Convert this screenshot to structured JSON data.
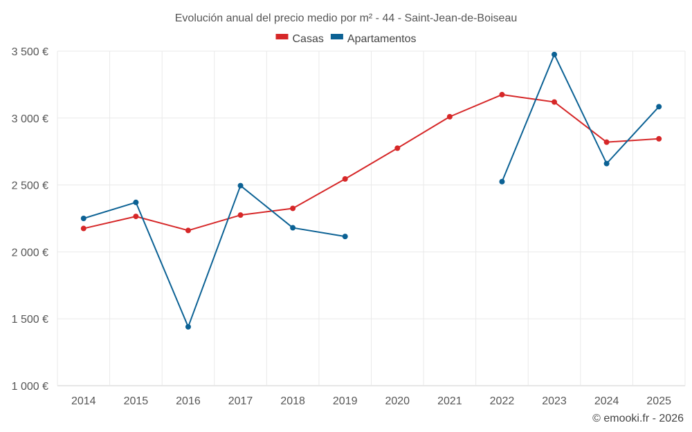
{
  "chart_data": {
    "type": "line",
    "title": "Evolución anual del precio medio por m² - 44 - Saint-Jean-de-Boiseau",
    "x": [
      "2014",
      "2015",
      "2016",
      "2017",
      "2018",
      "2019",
      "2020",
      "2021",
      "2022",
      "2023",
      "2024",
      "2025"
    ],
    "series": [
      {
        "name": "Casas",
        "color": "#d62728",
        "values": [
          2175,
          2265,
          2160,
          2275,
          2325,
          2545,
          2775,
          3010,
          3175,
          3120,
          2820,
          2845
        ]
      },
      {
        "name": "Apartamentos",
        "color": "#0b6194",
        "values": [
          2250,
          2370,
          1440,
          2495,
          2180,
          2115,
          null,
          null,
          2525,
          3475,
          2660,
          3085
        ]
      }
    ],
    "ylim": [
      1000,
      3500
    ],
    "yticks": [
      1000,
      1500,
      2000,
      2500,
      3000,
      3500
    ],
    "ytick_labels": [
      "1 000 €",
      "1 500 €",
      "2 000 €",
      "2 500 €",
      "3 000 €",
      "3 500 €"
    ],
    "xlabel": "",
    "ylabel": "",
    "grid": true,
    "legend_position": "top-center"
  },
  "credit": "© emooki.fr - 2026"
}
